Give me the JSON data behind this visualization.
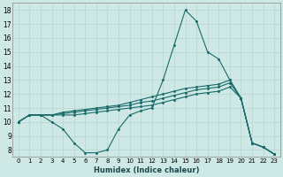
{
  "xlabel": "Humidex (Indice chaleur)",
  "background_color": "#cde8e5",
  "line_color": "#1a6b6b",
  "grid_color": "#b8d5d2",
  "xlim": [
    -0.5,
    23.5
  ],
  "ylim": [
    7.5,
    18.5
  ],
  "yticks": [
    8,
    9,
    10,
    11,
    12,
    13,
    14,
    15,
    16,
    17,
    18
  ],
  "xticks": [
    0,
    1,
    2,
    3,
    4,
    5,
    6,
    7,
    8,
    9,
    10,
    11,
    12,
    13,
    14,
    15,
    16,
    17,
    18,
    19,
    20,
    21,
    22,
    23
  ],
  "lines": [
    {
      "x": [
        0,
        1,
        2,
        3,
        4,
        5,
        6,
        7,
        8,
        9,
        10,
        11,
        12,
        13,
        14,
        15,
        16,
        17,
        18,
        19,
        20,
        21,
        22,
        23
      ],
      "y": [
        10,
        10.5,
        10.5,
        10.0,
        9.5,
        8.5,
        7.8,
        7.8,
        8.0,
        9.5,
        10.5,
        10.8,
        11.0,
        13.0,
        15.5,
        18.0,
        17.2,
        15.0,
        14.5,
        13.0,
        11.7,
        8.5,
        8.2,
        7.7
      ]
    },
    {
      "x": [
        0,
        1,
        2,
        3,
        4,
        5,
        6,
        7,
        8,
        9,
        10,
        11,
        12,
        13,
        14,
        15,
        16,
        17,
        18,
        19,
        20,
        21,
        22,
        23
      ],
      "y": [
        10,
        10.5,
        10.5,
        10.5,
        10.7,
        10.8,
        10.9,
        11.0,
        11.1,
        11.2,
        11.4,
        11.6,
        11.8,
        12.0,
        12.2,
        12.4,
        12.5,
        12.6,
        12.7,
        13.0,
        11.7,
        8.5,
        8.2,
        7.7
      ]
    },
    {
      "x": [
        0,
        1,
        2,
        3,
        4,
        5,
        6,
        7,
        8,
        9,
        10,
        11,
        12,
        13,
        14,
        15,
        16,
        17,
        18,
        19,
        20,
        21,
        22,
        23
      ],
      "y": [
        10,
        10.5,
        10.5,
        10.5,
        10.6,
        10.7,
        10.8,
        10.9,
        11.0,
        11.1,
        11.2,
        11.4,
        11.5,
        11.7,
        11.9,
        12.1,
        12.3,
        12.4,
        12.5,
        12.8,
        11.7,
        8.5,
        8.2,
        7.7
      ]
    },
    {
      "x": [
        0,
        1,
        2,
        3,
        4,
        5,
        6,
        7,
        8,
        9,
        10,
        11,
        12,
        13,
        14,
        15,
        16,
        17,
        18,
        19,
        20,
        21,
        22,
        23
      ],
      "y": [
        10,
        10.5,
        10.5,
        10.5,
        10.5,
        10.5,
        10.6,
        10.7,
        10.8,
        10.9,
        11.0,
        11.1,
        11.2,
        11.4,
        11.6,
        11.8,
        12.0,
        12.1,
        12.2,
        12.5,
        11.7,
        8.5,
        8.2,
        7.7
      ]
    }
  ]
}
